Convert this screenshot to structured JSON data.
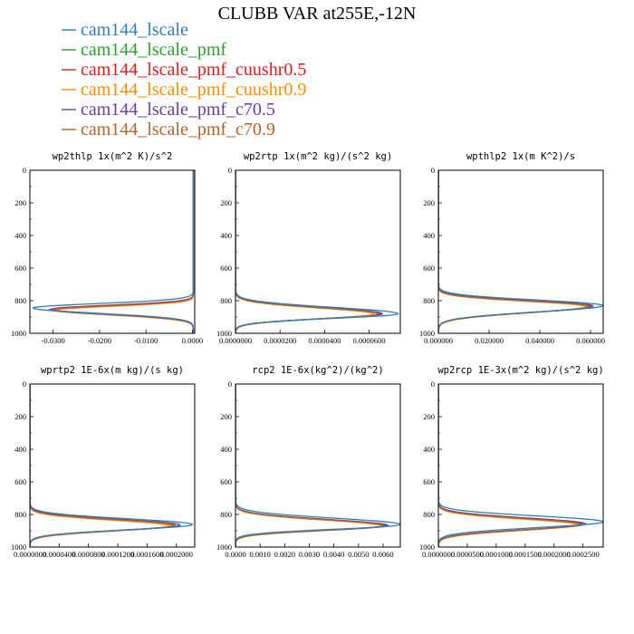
{
  "figure_title": "CLUBB VAR at255E,-12N",
  "legend": [
    {
      "label": "cam144_lscale",
      "color": "#2f7ebc"
    },
    {
      "label": "cam144_lscale_pmf",
      "color": "#2ca02c"
    },
    {
      "label": "cam144_lscale_pmf_cuushr0.5",
      "color": "#e31a1c"
    },
    {
      "label": "cam144_lscale_pmf_cuushr0.9",
      "color": "#ff8c00"
    },
    {
      "label": "cam144_lscale_pmf_c70.5",
      "color": "#6a3d9a"
    },
    {
      "label": "cam144_lscale_pmf_c70.9",
      "color": "#b8612b"
    }
  ],
  "chart_data": [
    {
      "type": "line",
      "title": "wp2thlp  1x(m^2 K)/s^2",
      "xlim": [
        -0.035,
        0.0005
      ],
      "xticks": [
        -0.03,
        -0.02,
        -0.01,
        0.0
      ],
      "xtick_labels": [
        "-0.0300",
        "-0.0200",
        "-0.0100",
        "0.0000"
      ],
      "ylim": [
        0,
        1000
      ],
      "yticks": [
        0,
        200,
        400,
        600,
        800,
        1000
      ],
      "ytick_labels": [
        "0",
        "200",
        "400",
        "600",
        "800",
        "1000"
      ],
      "y_inverted": true,
      "profile": {
        "base": 0.0002,
        "sign": -1,
        "tail_top": 700
      },
      "series": [
        {
          "name": "cam144_lscale",
          "peak": 0.0345,
          "center": 845,
          "w_up": 38,
          "w_down": 45
        },
        {
          "name": "cam144_lscale_pmf",
          "peak": 0.03,
          "center": 855,
          "w_up": 34,
          "w_down": 42
        },
        {
          "name": "cam144_lscale_pmf_cuushr0.5",
          "peak": 0.0305,
          "center": 852,
          "w_up": 34,
          "w_down": 42
        },
        {
          "name": "cam144_lscale_pmf_cuushr0.9",
          "peak": 0.0295,
          "center": 858,
          "w_up": 33,
          "w_down": 42
        },
        {
          "name": "cam144_lscale_pmf_c70.5",
          "peak": 0.031,
          "center": 855,
          "w_up": 35,
          "w_down": 42
        },
        {
          "name": "cam144_lscale_pmf_c70.9",
          "peak": 0.0303,
          "center": 856,
          "w_up": 34,
          "w_down": 42
        }
      ]
    },
    {
      "type": "line",
      "title": "wp2rtp  1x(m^2 kg)/(s^2 kg)",
      "xlim": [
        0.0,
        7.4e-05
      ],
      "xticks": [
        0.0,
        2e-05,
        4e-05,
        6e-05
      ],
      "xtick_labels": [
        "0.0000000",
        "0.0000200",
        "0.0000400",
        "0.0000600"
      ],
      "ylim": [
        0,
        1000
      ],
      "yticks": [
        0,
        200,
        400,
        600,
        800,
        1000
      ],
      "ytick_labels": [
        "0",
        "200",
        "400",
        "600",
        "800",
        "1000"
      ],
      "y_inverted": true,
      "profile": {
        "base": 0.0,
        "sign": 1,
        "tail_top": 0
      },
      "series": [
        {
          "name": "cam144_lscale",
          "peak": 7.3e-05,
          "center": 880,
          "w_up": 55,
          "w_down": 40
        },
        {
          "name": "cam144_lscale_pmf",
          "peak": 6.4e-05,
          "center": 880,
          "w_up": 52,
          "w_down": 42
        },
        {
          "name": "cam144_lscale_pmf_cuushr0.5",
          "peak": 6.5e-05,
          "center": 880,
          "w_up": 52,
          "w_down": 42
        },
        {
          "name": "cam144_lscale_pmf_cuushr0.9",
          "peak": 6.2e-05,
          "center": 882,
          "w_up": 52,
          "w_down": 42
        },
        {
          "name": "cam144_lscale_pmf_c70.5",
          "peak": 6.6e-05,
          "center": 880,
          "w_up": 53,
          "w_down": 42
        },
        {
          "name": "cam144_lscale_pmf_c70.9",
          "peak": 6.4e-05,
          "center": 881,
          "w_up": 52,
          "w_down": 42
        }
      ]
    },
    {
      "type": "line",
      "title": "wpthlp2  1x(m K^2)/s",
      "xlim": [
        0.0,
        0.065
      ],
      "xticks": [
        0.0,
        0.02,
        0.04,
        0.06
      ],
      "xtick_labels": [
        "0.000000",
        "0.020000",
        "0.040000",
        "0.060000"
      ],
      "ylim": [
        0,
        1000
      ],
      "yticks": [
        0,
        200,
        400,
        600,
        800,
        1000
      ],
      "ytick_labels": [
        "0",
        "200",
        "400",
        "600",
        "800",
        "1000"
      ],
      "y_inverted": true,
      "profile": {
        "base": 0.0,
        "sign": 1,
        "tail_top": 0
      },
      "series": [
        {
          "name": "cam144_lscale",
          "peak": 0.0648,
          "center": 830,
          "w_up": 48,
          "w_down": 55
        },
        {
          "name": "cam144_lscale_pmf",
          "peak": 0.059,
          "center": 835,
          "w_up": 45,
          "w_down": 55
        },
        {
          "name": "cam144_lscale_pmf_cuushr0.5",
          "peak": 0.06,
          "center": 833,
          "w_up": 45,
          "w_down": 55
        },
        {
          "name": "cam144_lscale_pmf_cuushr0.9",
          "peak": 0.058,
          "center": 836,
          "w_up": 45,
          "w_down": 55
        },
        {
          "name": "cam144_lscale_pmf_c70.5",
          "peak": 0.061,
          "center": 832,
          "w_up": 46,
          "w_down": 55
        },
        {
          "name": "cam144_lscale_pmf_c70.9",
          "peak": 0.0595,
          "center": 834,
          "w_up": 45,
          "w_down": 55
        }
      ]
    },
    {
      "type": "line",
      "title": "wprtp2  1E-6x(m kg)/(s kg)",
      "xlim": [
        0.0,
        0.000225
      ],
      "xticks": [
        0.0,
        4e-05,
        8e-05,
        0.00012,
        0.00016,
        0.0002
      ],
      "xtick_labels": [
        "0.0000000",
        "0.0000400",
        "0.0000800",
        "0.0001200",
        "0.0001600",
        "0.0002000"
      ],
      "ylim": [
        0,
        1000
      ],
      "yticks": [
        0,
        200,
        400,
        600,
        800,
        1000
      ],
      "ytick_labels": [
        "0",
        "200",
        "400",
        "600",
        "800",
        "1000"
      ],
      "y_inverted": true,
      "profile": {
        "base": 0.0,
        "sign": 1,
        "tail_top": 0
      },
      "series": [
        {
          "name": "cam144_lscale",
          "peak": 0.000222,
          "center": 862,
          "w_up": 50,
          "w_down": 45
        },
        {
          "name": "cam144_lscale_pmf",
          "peak": 0.000195,
          "center": 868,
          "w_up": 48,
          "w_down": 45
        },
        {
          "name": "cam144_lscale_pmf_cuushr0.5",
          "peak": 0.000198,
          "center": 866,
          "w_up": 48,
          "w_down": 45
        },
        {
          "name": "cam144_lscale_pmf_cuushr0.9",
          "peak": 0.00019,
          "center": 870,
          "w_up": 48,
          "w_down": 45
        },
        {
          "name": "cam144_lscale_pmf_c70.5",
          "peak": 0.000205,
          "center": 865,
          "w_up": 49,
          "w_down": 45
        },
        {
          "name": "cam144_lscale_pmf_c70.9",
          "peak": 0.000199,
          "center": 867,
          "w_up": 48,
          "w_down": 45
        }
      ]
    },
    {
      "type": "line",
      "title": "rcp2  1E-6x(kg^2)/(kg^2)",
      "xlim": [
        0.0,
        0.0067
      ],
      "xticks": [
        0.0,
        0.001,
        0.002,
        0.003,
        0.004,
        0.005,
        0.006
      ],
      "xtick_labels": [
        "0.0000",
        "0.0010",
        "0.0020",
        "0.0030",
        "0.0040",
        "0.0050",
        "0.0060"
      ],
      "ylim": [
        0,
        1000
      ],
      "yticks": [
        0,
        200,
        400,
        600,
        800,
        1000
      ],
      "ytick_labels": [
        "0",
        "200",
        "400",
        "600",
        "800",
        "1000"
      ],
      "y_inverted": true,
      "profile": {
        "base": 0.0,
        "sign": 1,
        "tail_top": 0
      },
      "series": [
        {
          "name": "cam144_lscale",
          "peak": 0.0067,
          "center": 862,
          "w_up": 55,
          "w_down": 40
        },
        {
          "name": "cam144_lscale_pmf",
          "peak": 0.006,
          "center": 870,
          "w_up": 52,
          "w_down": 40
        },
        {
          "name": "cam144_lscale_pmf_cuushr0.5",
          "peak": 0.0061,
          "center": 868,
          "w_up": 52,
          "w_down": 40
        },
        {
          "name": "cam144_lscale_pmf_cuushr0.9",
          "peak": 0.0059,
          "center": 871,
          "w_up": 52,
          "w_down": 40
        },
        {
          "name": "cam144_lscale_pmf_c70.5",
          "peak": 0.0062,
          "center": 868,
          "w_up": 53,
          "w_down": 40
        },
        {
          "name": "cam144_lscale_pmf_c70.9",
          "peak": 0.006,
          "center": 869,
          "w_up": 52,
          "w_down": 40
        }
      ]
    },
    {
      "type": "line",
      "title": "wp2rcp  1E-3x(m^2 kg)/(s^2 kg)",
      "xlim": [
        0.0,
        0.000285
      ],
      "xticks": [
        0.0,
        5e-05,
        0.0001,
        0.00015,
        0.0002,
        0.00025
      ],
      "xtick_labels": [
        "0.0000000",
        "0.0000500",
        "0.0001000",
        "0.0001500",
        "0.0002000",
        "0.0002500"
      ],
      "ylim": [
        0,
        1000
      ],
      "yticks": [
        0,
        200,
        400,
        600,
        800,
        1000
      ],
      "ytick_labels": [
        "0",
        "200",
        "400",
        "600",
        "800",
        "1000"
      ],
      "y_inverted": true,
      "profile": {
        "base": 0.0,
        "sign": 1,
        "tail_top": 0
      },
      "series": [
        {
          "name": "cam144_lscale",
          "peak": 0.000285,
          "center": 845,
          "w_up": 50,
          "w_down": 50
        },
        {
          "name": "cam144_lscale_pmf",
          "peak": 0.000245,
          "center": 862,
          "w_up": 50,
          "w_down": 48
        },
        {
          "name": "cam144_lscale_pmf_cuushr0.5",
          "peak": 0.00025,
          "center": 860,
          "w_up": 50,
          "w_down": 48
        },
        {
          "name": "cam144_lscale_pmf_cuushr0.9",
          "peak": 0.00024,
          "center": 864,
          "w_up": 50,
          "w_down": 48
        },
        {
          "name": "cam144_lscale_pmf_c70.5",
          "peak": 0.000255,
          "center": 858,
          "w_up": 51,
          "w_down": 48
        },
        {
          "name": "cam144_lscale_pmf_c70.9",
          "peak": 0.000248,
          "center": 861,
          "w_up": 50,
          "w_down": 48
        }
      ]
    }
  ]
}
